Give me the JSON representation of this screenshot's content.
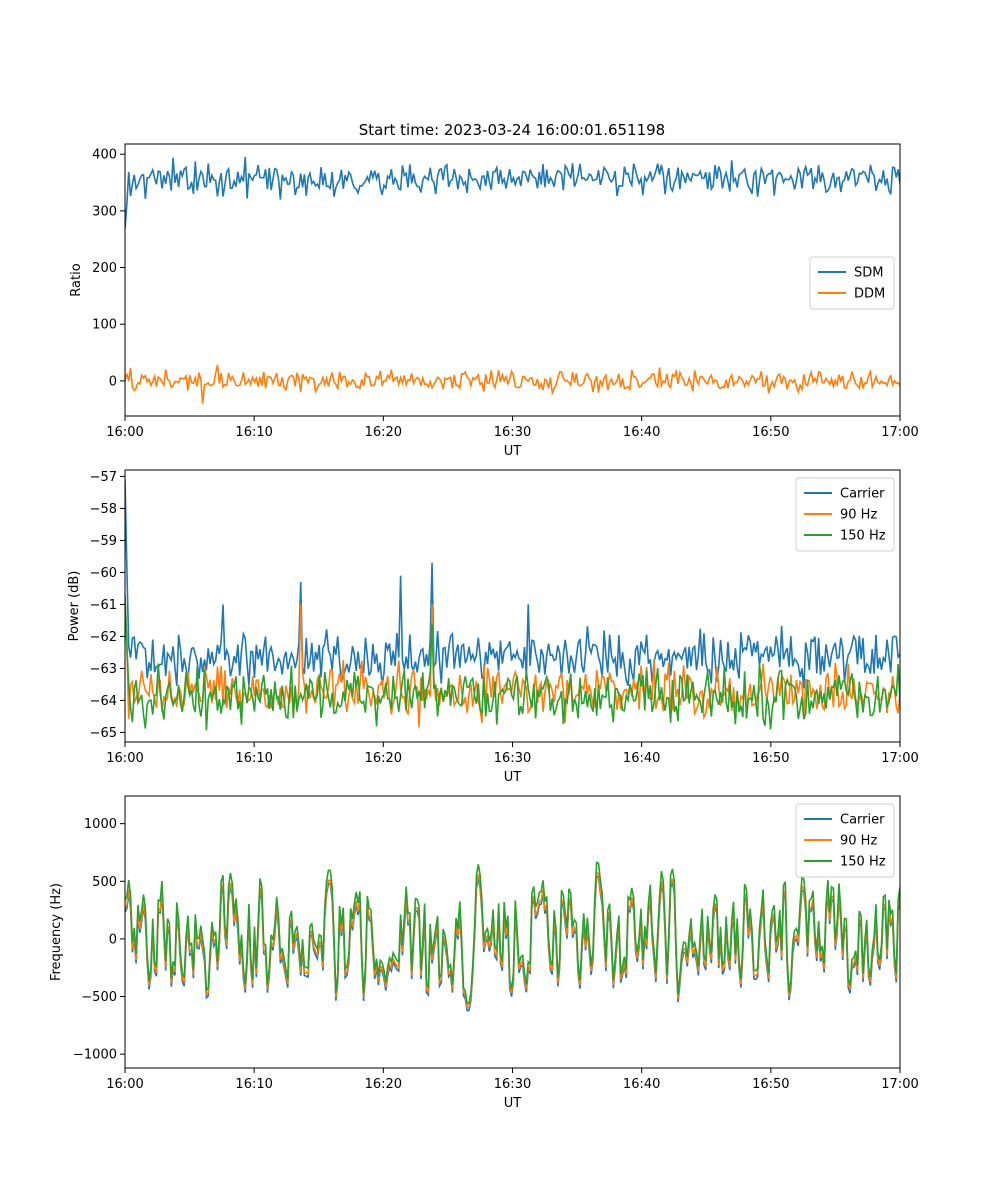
{
  "figure_title": "Start time: 2023-03-24 16:00:01.651198",
  "chart_data": [
    {
      "type": "line",
      "title": "Start time: 2023-03-24 16:00:01.651198",
      "xlabel": "UT",
      "ylabel": "Ratio",
      "xlim": [
        "16:00",
        "17:00"
      ],
      "ylim": [
        -62,
        418
      ],
      "x_ticks": [
        "16:00",
        "16:10",
        "16:20",
        "16:30",
        "16:40",
        "16:50",
        "17:00"
      ],
      "y_ticks": [
        "400",
        "300",
        "200",
        "100",
        "0"
      ],
      "legend_position": "center-right",
      "series": [
        {
          "name": "SDM",
          "color": "#1f77b4",
          "baseline": 356,
          "noise": 14,
          "spikes": [
            {
              "t": 0.0,
              "v": 268
            },
            {
              "t": 0.2,
              "v": 320
            }
          ],
          "values_note": ""
        },
        {
          "name": "DDM",
          "color": "#ff7f0e",
          "baseline": 0,
          "noise": 9,
          "spikes": [
            {
              "t": 0.1,
              "v": -40
            },
            {
              "t": 0.12,
              "v": 28
            }
          ],
          "values_note": ""
        }
      ]
    },
    {
      "type": "line",
      "title": "",
      "xlabel": "UT",
      "ylabel": "Power (dB)",
      "xlim": [
        "16:00",
        "17:00"
      ],
      "ylim": [
        -65.3,
        -56.8
      ],
      "x_ticks": [
        "16:00",
        "16:10",
        "16:20",
        "16:30",
        "16:40",
        "16:50",
        "17:00"
      ],
      "y_ticks": [
        "-57",
        "-58",
        "-59",
        "-60",
        "-61",
        "-62",
        "-63",
        "-64",
        "-65"
      ],
      "legend_position": "upper-right",
      "series": [
        {
          "name": "Carrier",
          "color": "#1f77b4",
          "baseline": -62.6,
          "noise": 0.4,
          "spikes": [
            {
              "t": 0.0,
              "v": -57.1
            },
            {
              "t": 0.127,
              "v": -61.0
            },
            {
              "t": 0.227,
              "v": -60.3
            },
            {
              "t": 0.355,
              "v": -60.1
            },
            {
              "t": 0.397,
              "v": -59.7
            },
            {
              "t": 0.52,
              "v": -61.0
            }
          ]
        },
        {
          "name": "90 Hz",
          "color": "#ff7f0e",
          "baseline": -63.7,
          "noise": 0.4,
          "spikes": [
            {
              "t": 0.0,
              "v": -60.8
            },
            {
              "t": 0.227,
              "v": -61.0
            },
            {
              "t": 0.397,
              "v": -61.0
            }
          ]
        },
        {
          "name": "150 Hz",
          "color": "#2ca02c",
          "baseline": -63.9,
          "noise": 0.4,
          "spikes": [
            {
              "t": 0.0,
              "v": -60.7
            },
            {
              "t": 0.397,
              "v": -61.6
            }
          ]
        }
      ]
    },
    {
      "type": "line",
      "title": "",
      "xlabel": "UT",
      "ylabel": "Frequency (Hz)",
      "xlim": [
        "16:00",
        "17:00"
      ],
      "ylim": [
        -1120,
        1240
      ],
      "x_ticks": [
        "16:00",
        "16:10",
        "16:20",
        "16:30",
        "16:40",
        "16:50",
        "17:00"
      ],
      "y_ticks": [
        "1000",
        "500",
        "0",
        "-500",
        "-1000"
      ],
      "legend_position": "upper-right",
      "series": [
        {
          "name": "Carrier",
          "color": "#1f77b4",
          "offset": -60,
          "amplitude": 420
        },
        {
          "name": "90 Hz",
          "color": "#ff7f0e",
          "offset": -30,
          "amplitude": 420
        },
        {
          "name": "150 Hz",
          "color": "#2ca02c",
          "offset": 30,
          "amplitude": 420
        }
      ]
    }
  ]
}
